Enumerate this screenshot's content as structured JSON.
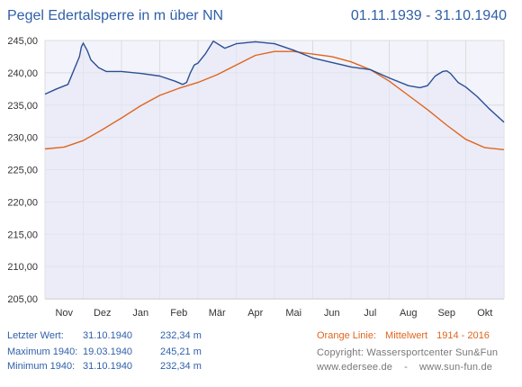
{
  "header": {
    "title": "Pegel Edertalsperre in m über NN",
    "period": "01.11.1939 - 31.10.1940"
  },
  "chart_data": {
    "type": "line",
    "yunit": "m über NN",
    "ylim": [
      205,
      245
    ],
    "yticks": [
      "245,00",
      "240,00",
      "235,00",
      "230,00",
      "225,00",
      "220,00",
      "215,00",
      "210,00",
      "205,00"
    ],
    "months": [
      "Nov",
      "Dez",
      "Jan",
      "Feb",
      "Mär",
      "Apr",
      "Mai",
      "Jun",
      "Jul",
      "Aug",
      "Sep",
      "Okt"
    ],
    "grid": true,
    "series": [
      {
        "color": "#2b4f95",
        "x": [
          0,
          0.3,
          0.6,
          0.9,
          0.95,
          1.0,
          1.1,
          1.2,
          1.4,
          1.6,
          2.0,
          2.5,
          3.0,
          3.4,
          3.6,
          3.7,
          3.8,
          3.9,
          4.0,
          4.2,
          4.4,
          4.7,
          5.0,
          5.5,
          6.0,
          6.5,
          7.0,
          7.5,
          8.0,
          8.5,
          9.0,
          9.5,
          9.8,
          10.0,
          10.2,
          10.4,
          10.5,
          10.6,
          10.8,
          11.0,
          11.3,
          11.6,
          12.0
        ],
        "values": [
          236.7,
          237.5,
          238.2,
          242.5,
          244.0,
          244.6,
          243.5,
          242.0,
          240.8,
          240.2,
          240.2,
          239.9,
          239.5,
          238.7,
          238.2,
          238.5,
          240.0,
          241.2,
          241.5,
          243.0,
          244.9,
          243.8,
          244.5,
          244.8,
          244.5,
          243.5,
          242.3,
          241.6,
          240.9,
          240.5,
          239.2,
          238.0,
          237.7,
          238.0,
          239.5,
          240.2,
          240.3,
          239.9,
          238.5,
          237.8,
          236.3,
          234.5,
          232.34
        ]
      },
      {
        "color": "#e0651d",
        "x": [
          0,
          0.5,
          1.0,
          1.5,
          2.0,
          2.5,
          3.0,
          3.5,
          4.0,
          4.5,
          5.0,
          5.5,
          6.0,
          6.5,
          7.0,
          7.5,
          8.0,
          8.5,
          9.0,
          9.5,
          10.0,
          10.5,
          11.0,
          11.5,
          12.0
        ],
        "values": [
          228.2,
          228.5,
          229.5,
          231.2,
          233.0,
          234.9,
          236.5,
          237.6,
          238.5,
          239.7,
          241.2,
          242.7,
          243.3,
          243.3,
          242.9,
          242.5,
          241.7,
          240.5,
          238.7,
          236.5,
          234.3,
          231.9,
          229.7,
          228.4,
          228.1
        ]
      }
    ]
  },
  "stats": {
    "last": {
      "label": "Letzter Wert:",
      "date": "31.10.1940",
      "value": "232,34 m"
    },
    "max": {
      "label": "Maximum 1940:",
      "date": "19.03.1940",
      "value": "245,21 m"
    },
    "min": {
      "label": "Minimum  1940:",
      "date": "31.10.1940",
      "value": "232,34 m"
    }
  },
  "legend": {
    "orange_line": "Orange Linie:",
    "mean_label": "Mittelwert",
    "mean_years": "1914 - 2016"
  },
  "credits": {
    "copyright": "Copyright: Wassersportcenter Sun&Fun",
    "websites": "www.edersee.de    -    www.sun-fun.de"
  }
}
